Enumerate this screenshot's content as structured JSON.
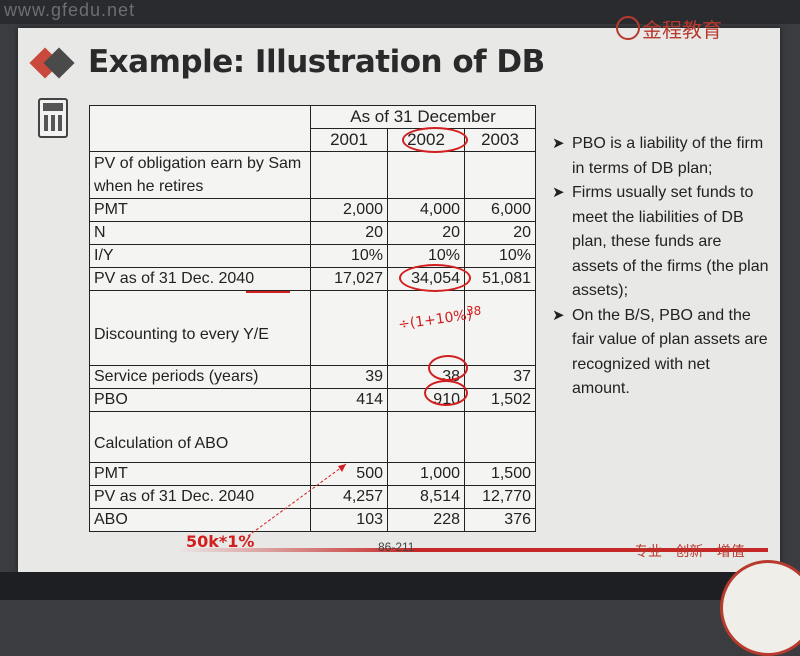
{
  "watermark": "www.gfedu.net",
  "brand": "金程教育",
  "title": "Example: Illustration of DB",
  "table": {
    "header": "As of 31 December",
    "years": [
      "2001",
      "2002",
      "2003"
    ],
    "obligation_label": "PV of obligation earn by Sam when he retires",
    "rows1": [
      {
        "label": "PMT",
        "v": [
          "2,000",
          "4,000",
          "6,000"
        ]
      },
      {
        "label": "N",
        "v": [
          "20",
          "20",
          "20"
        ]
      },
      {
        "label": "I/Y",
        "v": [
          "10%",
          "10%",
          "10%"
        ]
      },
      {
        "label": "PV as of 31 Dec. 2040",
        "v": [
          "17,027",
          "34,054",
          "51,081"
        ]
      }
    ],
    "discount_label": "Discounting to every Y/E",
    "rows2": [
      {
        "label": "Service periods (years)",
        "v": [
          "39",
          "38",
          "37"
        ]
      },
      {
        "label": "PBO",
        "v": [
          "414",
          "910",
          "1,502"
        ]
      }
    ],
    "abo_label": "Calculation of ABO",
    "rows3": [
      {
        "label": "PMT",
        "v": [
          "500",
          "1,000",
          "1,500"
        ]
      },
      {
        "label": "PV as of 31 Dec. 2040",
        "v": [
          "4,257",
          "8,514",
          "12,770"
        ]
      },
      {
        "label": "ABO",
        "v": [
          "103",
          "228",
          "376"
        ]
      }
    ]
  },
  "bullets": [
    "PBO is a liability of the firm in terms of DB plan;",
    "Firms usually set funds to meet the liabilities of DB plan, these funds are assets of the firms (the plan assets);",
    "On the B/S, PBO and the fair value of plan assets are recognized with net amount."
  ],
  "annotations": {
    "formula": "÷(1+10%)",
    "exponent": "38",
    "note": "50k*1%"
  },
  "page_number": "86-211",
  "slogan": "专业 · 创新 · 增值",
  "colors": {
    "accent_red": "#d21e1e",
    "brand_red": "#b8392e"
  }
}
